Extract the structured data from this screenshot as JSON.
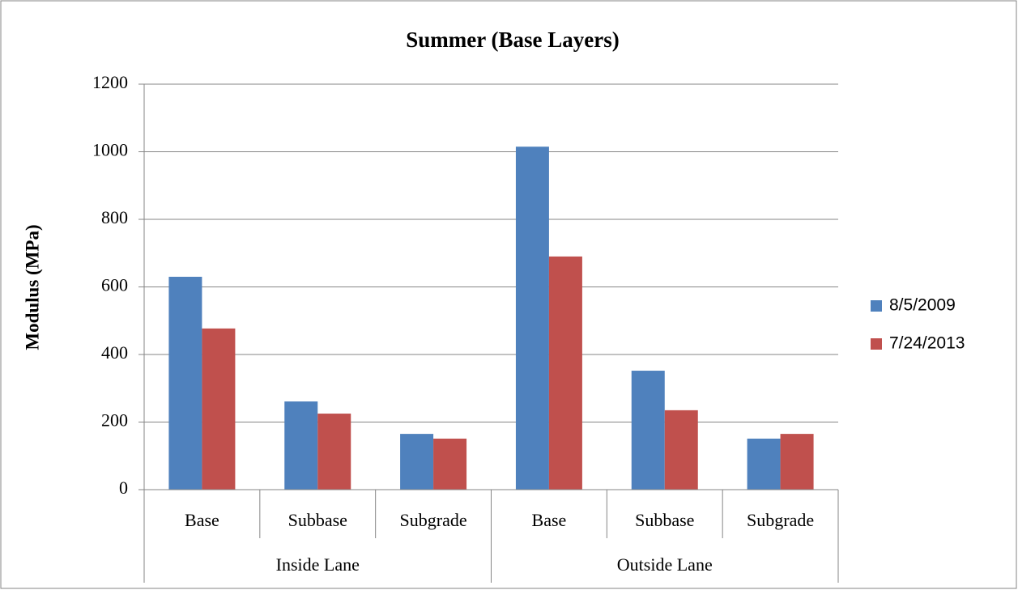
{
  "chart_data": {
    "type": "bar",
    "title": "Summer (Base Layers)",
    "y_label": "Modulus (MPa)",
    "categories": [
      "Base",
      "Subbase",
      "Subgrade",
      "Base",
      "Subbase",
      "Subgrade"
    ],
    "groups": [
      "Inside Lane",
      "Outside Lane"
    ],
    "series": [
      {
        "name": "8/5/2009",
        "color": "#4f81bd",
        "values": [
          630,
          261,
          165,
          1015,
          352,
          151
        ]
      },
      {
        "name": "7/24/2013",
        "color": "#c0504d",
        "values": [
          477,
          225,
          151,
          690,
          235,
          165
        ]
      }
    ],
    "ylim": [
      0,
      1200
    ],
    "yticks": [
      0,
      200,
      400,
      600,
      800,
      1000,
      1200
    ],
    "grid": true,
    "legend": "right"
  }
}
